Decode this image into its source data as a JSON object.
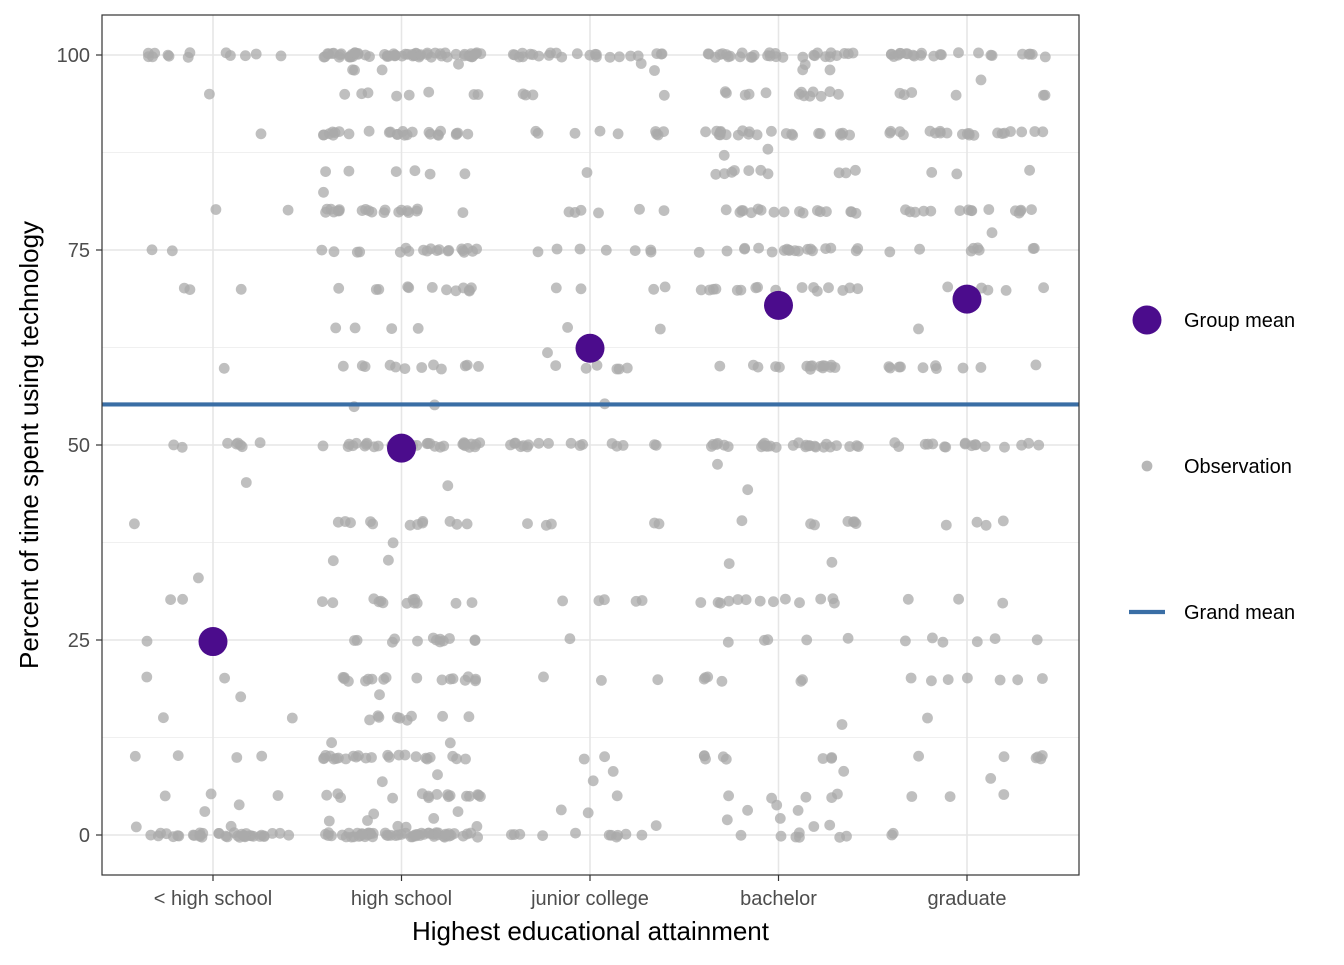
{
  "chart_data": {
    "type": "scatter",
    "xlabel": "Highest educational attainment",
    "ylabel": "Percent of time spent using technology",
    "categories": [
      "< high school",
      "high school",
      "junior college",
      "bachelor",
      "graduate"
    ],
    "yticks": [
      0,
      25,
      50,
      75,
      100
    ],
    "ylim": [
      -5,
      105
    ],
    "grid": true,
    "legend_position": "right",
    "legend": [
      {
        "label": "Group mean",
        "kind": "point-large",
        "color": "#4b0c8c"
      },
      {
        "label": "Observation",
        "kind": "point-small",
        "color": "#aaaaaa"
      },
      {
        "label": "Grand mean",
        "kind": "line",
        "color": "#3a6ea5"
      }
    ],
    "grand_mean": 55.2,
    "group_means": [
      {
        "category": "< high school",
        "value": 24.8
      },
      {
        "category": "high school",
        "value": 49.6
      },
      {
        "category": "junior college",
        "value": 62.4
      },
      {
        "category": "bachelor",
        "value": 67.9
      },
      {
        "category": "graduate",
        "value": 68.7
      }
    ],
    "observations": [
      {
        "category": "< high school",
        "values": [
          0,
          0,
          0,
          0,
          0,
          0,
          0,
          0,
          0,
          0,
          0,
          0,
          0,
          0,
          0,
          0,
          0,
          0,
          0,
          0,
          0,
          0,
          0,
          0,
          0,
          0,
          0,
          0,
          0,
          0,
          0,
          0,
          0,
          0,
          0,
          0,
          1,
          1,
          3,
          4,
          5,
          5,
          5,
          10,
          10,
          10,
          10,
          15,
          15,
          17.5,
          20,
          20,
          25,
          25,
          30,
          30,
          33,
          40,
          45,
          50,
          50,
          50,
          50,
          50,
          50,
          50,
          50,
          60,
          70,
          70,
          70,
          75,
          75,
          80,
          80,
          90,
          95,
          100,
          100,
          100,
          100,
          100,
          100,
          100,
          100,
          100,
          100,
          100,
          100,
          100
        ]
      },
      {
        "category": "high school",
        "values": [
          0,
          0,
          0,
          0,
          0,
          0,
          0,
          0,
          0,
          0,
          0,
          0,
          0,
          0,
          0,
          0,
          0,
          0,
          0,
          0,
          0,
          0,
          0,
          0,
          0,
          0,
          0,
          0,
          0,
          0,
          0,
          0,
          0,
          0,
          0,
          0,
          0,
          0,
          0,
          0,
          0,
          0,
          0,
          0,
          0,
          0,
          0,
          0,
          0,
          0,
          0,
          0,
          0,
          0,
          0,
          0,
          0,
          0,
          0,
          0,
          1,
          1,
          1,
          2,
          2,
          2,
          3,
          3,
          5,
          5,
          5,
          5,
          5,
          5,
          5,
          5,
          5,
          5,
          5,
          5,
          5,
          5,
          5,
          5,
          7,
          8,
          10,
          10,
          10,
          10,
          10,
          10,
          10,
          10,
          10,
          10,
          10,
          10,
          10,
          10,
          10,
          10,
          10,
          10,
          10,
          10,
          10,
          10,
          10,
          10,
          12,
          12,
          15,
          15,
          15,
          15,
          15,
          15,
          15,
          15,
          15,
          18,
          20,
          20,
          20,
          20,
          20,
          20,
          20,
          20,
          20,
          20,
          20,
          20,
          20,
          20,
          20,
          20,
          20,
          25,
          25,
          25,
          25,
          25,
          25,
          25,
          25,
          25,
          25,
          25,
          25,
          25,
          30,
          30,
          30,
          30,
          30,
          30,
          30,
          30,
          30,
          30,
          30,
          30,
          30,
          35,
          35,
          37.5,
          40,
          40,
          40,
          40,
          40,
          40,
          40,
          40,
          40,
          40,
          40,
          40,
          45,
          50,
          50,
          50,
          50,
          50,
          50,
          50,
          50,
          50,
          50,
          50,
          50,
          50,
          50,
          50,
          50,
          50,
          50,
          50,
          50,
          50,
          50,
          50,
          50,
          50,
          50,
          50,
          50,
          50,
          50,
          50,
          50,
          55,
          55,
          60,
          60,
          60,
          60,
          60,
          60,
          60,
          60,
          60,
          60,
          60,
          60,
          65,
          65,
          65,
          65,
          70,
          70,
          70,
          70,
          70,
          70,
          70,
          70,
          70,
          70,
          70,
          70,
          75,
          75,
          75,
          75,
          75,
          75,
          75,
          75,
          75,
          75,
          75,
          75,
          75,
          75,
          75,
          75,
          75,
          75,
          75,
          75,
          80,
          80,
          80,
          80,
          80,
          80,
          80,
          80,
          80,
          80,
          80,
          80,
          80,
          80,
          80,
          80,
          80,
          80,
          80,
          80,
          82.5,
          85,
          85,
          85,
          85,
          85,
          85,
          90,
          90,
          90,
          90,
          90,
          90,
          90,
          90,
          90,
          90,
          90,
          90,
          90,
          90,
          90,
          90,
          90,
          90,
          90,
          90,
          90,
          90,
          90,
          90,
          90,
          90,
          95,
          95,
          95,
          95,
          95,
          95,
          95,
          95,
          98,
          98,
          98,
          99,
          100,
          100,
          100,
          100,
          100,
          100,
          100,
          100,
          100,
          100,
          100,
          100,
          100,
          100,
          100,
          100,
          100,
          100,
          100,
          100,
          100,
          100,
          100,
          100,
          100,
          100,
          100,
          100,
          100,
          100,
          100,
          100,
          100,
          100,
          100,
          100,
          100,
          100,
          100,
          100,
          100,
          100,
          100,
          100,
          100,
          100,
          100,
          100,
          100,
          100,
          100,
          100,
          100,
          100,
          100,
          100,
          100,
          100,
          100,
          100
        ]
      },
      {
        "category": "junior college",
        "values": [
          0,
          0,
          0,
          0,
          0,
          0,
          0,
          0,
          0,
          0,
          0,
          1,
          3,
          3,
          5,
          7,
          8,
          10,
          10,
          20,
          20,
          20,
          25,
          30,
          30,
          30,
          30,
          30,
          40,
          40,
          40,
          40,
          40,
          50,
          50,
          50,
          50,
          50,
          50,
          50,
          50,
          50,
          50,
          50,
          50,
          50,
          50,
          50,
          50,
          50,
          55,
          60,
          60,
          60,
          60,
          60,
          60,
          62,
          65,
          65,
          70,
          70,
          70,
          70,
          75,
          75,
          75,
          75,
          75,
          75,
          75,
          80,
          80,
          80,
          80,
          80,
          80,
          85,
          90,
          90,
          90,
          90,
          90,
          90,
          90,
          90,
          90,
          95,
          95,
          95,
          95,
          98,
          99,
          100,
          100,
          100,
          100,
          100,
          100,
          100,
          100,
          100,
          100,
          100,
          100,
          100,
          100,
          100,
          100,
          100,
          100,
          100,
          100,
          100,
          100,
          100,
          100
        ]
      },
      {
        "category": "bachelor",
        "values": [
          0,
          0,
          0,
          0,
          0,
          0,
          0,
          1,
          1,
          2,
          2,
          3,
          3,
          4,
          5,
          5,
          5,
          5,
          5,
          8,
          10,
          10,
          10,
          10,
          10,
          10,
          10,
          10,
          14,
          20,
          20,
          20,
          20,
          20,
          20,
          25,
          25,
          25,
          25,
          25,
          30,
          30,
          30,
          30,
          30,
          30,
          30,
          30,
          30,
          30,
          30,
          30,
          30,
          35,
          35,
          40,
          40,
          40,
          40,
          40,
          40,
          40,
          44,
          47.5,
          50,
          50,
          50,
          50,
          50,
          50,
          50,
          50,
          50,
          50,
          50,
          50,
          50,
          50,
          50,
          50,
          50,
          50,
          50,
          50,
          50,
          50,
          50,
          50,
          50,
          50,
          50,
          50,
          60,
          60,
          60,
          60,
          60,
          60,
          60,
          60,
          60,
          60,
          60,
          60,
          60,
          60,
          60,
          60,
          70,
          70,
          70,
          70,
          70,
          70,
          70,
          70,
          70,
          70,
          70,
          70,
          70,
          70,
          70,
          70,
          75,
          75,
          75,
          75,
          75,
          75,
          75,
          75,
          75,
          75,
          75,
          75,
          75,
          75,
          75,
          75,
          75,
          75,
          75,
          80,
          80,
          80,
          80,
          80,
          80,
          80,
          80,
          80,
          80,
          80,
          80,
          80,
          80,
          80,
          80,
          80,
          85,
          85,
          85,
          85,
          85,
          85,
          85,
          85,
          85,
          85,
          87,
          88,
          90,
          90,
          90,
          90,
          90,
          90,
          90,
          90,
          90,
          90,
          90,
          90,
          90,
          90,
          90,
          90,
          90,
          90,
          90,
          90,
          90,
          90,
          95,
          95,
          95,
          95,
          95,
          95,
          95,
          95,
          95,
          95,
          95,
          95,
          95,
          98,
          98,
          99,
          100,
          100,
          100,
          100,
          100,
          100,
          100,
          100,
          100,
          100,
          100,
          100,
          100,
          100,
          100,
          100,
          100,
          100,
          100,
          100,
          100,
          100,
          100,
          100,
          100,
          100,
          100,
          100,
          100,
          100
        ]
      },
      {
        "category": "graduate",
        "values": [
          0,
          0,
          5,
          5,
          5,
          7,
          10,
          10,
          10,
          10,
          10,
          10,
          15,
          20,
          20,
          20,
          20,
          20,
          20,
          20,
          25,
          25,
          25,
          25,
          25,
          25,
          30,
          30,
          30,
          40,
          40,
          40,
          40,
          50,
          50,
          50,
          50,
          50,
          50,
          50,
          50,
          50,
          50,
          50,
          50,
          50,
          50,
          50,
          50,
          50,
          60,
          60,
          60,
          60,
          60,
          60,
          60,
          60,
          60,
          60,
          65,
          70,
          70,
          70,
          70,
          70,
          75,
          75,
          75,
          75,
          75,
          75,
          75,
          75,
          77,
          80,
          80,
          80,
          80,
          80,
          80,
          80,
          80,
          80,
          80,
          80,
          80,
          80,
          80,
          80,
          85,
          85,
          85,
          90,
          90,
          90,
          90,
          90,
          90,
          90,
          90,
          90,
          90,
          90,
          90,
          90,
          90,
          90,
          90,
          90,
          90,
          90,
          90,
          90,
          95,
          95,
          95,
          95,
          95,
          95,
          97,
          100,
          100,
          100,
          100,
          100,
          100,
          100,
          100,
          100,
          100,
          100,
          100,
          100,
          100,
          100,
          100,
          100,
          100,
          100,
          100,
          100,
          100,
          100,
          100
        ]
      }
    ]
  }
}
